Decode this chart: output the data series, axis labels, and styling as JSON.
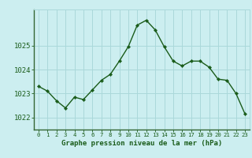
{
  "x": [
    0,
    1,
    2,
    3,
    4,
    5,
    6,
    7,
    8,
    9,
    10,
    11,
    12,
    13,
    14,
    15,
    16,
    17,
    18,
    19,
    20,
    21,
    22,
    23
  ],
  "y": [
    1023.3,
    1023.1,
    1022.7,
    1022.4,
    1022.85,
    1022.75,
    1023.15,
    1023.55,
    1023.8,
    1024.35,
    1024.95,
    1025.85,
    1026.05,
    1025.65,
    1024.95,
    1024.35,
    1024.15,
    1024.35,
    1024.35,
    1024.1,
    1023.6,
    1023.55,
    1023.0,
    1022.15
  ],
  "line_color": "#1a5c1a",
  "marker_color": "#1a5c1a",
  "bg_color": "#cceef0",
  "grid_color": "#aad8da",
  "axis_label_color": "#1a5c1a",
  "title": "Graphe pression niveau de la mer (hPa)",
  "ylim": [
    1021.5,
    1026.5
  ],
  "yticks": [
    1022,
    1023,
    1024,
    1025
  ],
  "border_color": "#336633",
  "fig_bg": "#cceef0"
}
